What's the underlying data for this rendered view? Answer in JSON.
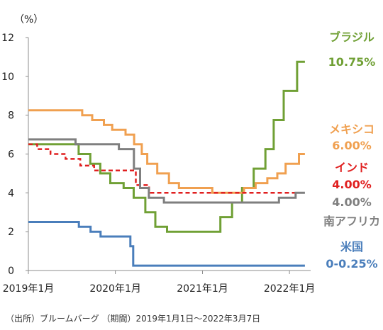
{
  "chart_data": {
    "type": "line",
    "unit_label": "（%）",
    "ylim": [
      0,
      12
    ],
    "y_ticks": [
      "0",
      "2",
      "4",
      "6",
      "8",
      "10",
      "12"
    ],
    "x_ticks": [
      "2019年1月",
      "2020年1月",
      "2021年1月",
      "2022年1月"
    ],
    "x_range": [
      "2019-01-01",
      "2022-03-07"
    ],
    "grid": "none",
    "source_note": "（出所）ブルームバーグ （期間）2019年1月1日～2022年3月7日",
    "series": [
      {
        "name": "ブラジル",
        "value_label": "10.75%",
        "color": "#70a035",
        "dash": false,
        "points": [
          [
            "2019-01-01",
            6.5
          ],
          [
            "2019-07-31",
            6.0
          ],
          [
            "2019-09-18",
            5.5
          ],
          [
            "2019-10-30",
            5.0
          ],
          [
            "2019-12-11",
            4.5
          ],
          [
            "2020-02-05",
            4.25
          ],
          [
            "2020-03-18",
            3.75
          ],
          [
            "2020-05-06",
            3.0
          ],
          [
            "2020-06-17",
            2.25
          ],
          [
            "2020-08-05",
            2.0
          ],
          [
            "2021-03-17",
            2.75
          ],
          [
            "2021-05-05",
            3.5
          ],
          [
            "2021-06-16",
            4.25
          ],
          [
            "2021-08-04",
            5.25
          ],
          [
            "2021-09-22",
            6.25
          ],
          [
            "2021-10-27",
            7.75
          ],
          [
            "2021-12-08",
            9.25
          ],
          [
            "2022-02-02",
            10.75
          ],
          [
            "2022-03-07",
            10.75
          ]
        ]
      },
      {
        "name": "メキシコ",
        "value_label": "6.00%",
        "color": "#f0a050",
        "dash": false,
        "points": [
          [
            "2019-01-01",
            8.25
          ],
          [
            "2019-08-15",
            8.0
          ],
          [
            "2019-09-26",
            7.75
          ],
          [
            "2019-11-14",
            7.5
          ],
          [
            "2019-12-19",
            7.25
          ],
          [
            "2020-02-13",
            7.0
          ],
          [
            "2020-03-20",
            6.5
          ],
          [
            "2020-04-21",
            6.0
          ],
          [
            "2020-05-14",
            5.5
          ],
          [
            "2020-06-25",
            5.0
          ],
          [
            "2020-08-13",
            4.5
          ],
          [
            "2020-09-24",
            4.25
          ],
          [
            "2021-02-11",
            4.0
          ],
          [
            "2021-06-24",
            4.25
          ],
          [
            "2021-08-12",
            4.5
          ],
          [
            "2021-09-30",
            4.75
          ],
          [
            "2021-11-11",
            5.0
          ],
          [
            "2021-12-16",
            5.5
          ],
          [
            "2022-02-10",
            6.0
          ],
          [
            "2022-03-07",
            6.0
          ]
        ]
      },
      {
        "name": "インド",
        "value_label": "4.00%",
        "color": "#e02020",
        "dash": true,
        "points": [
          [
            "2019-01-01",
            6.5
          ],
          [
            "2019-02-07",
            6.25
          ],
          [
            "2019-04-04",
            6.0
          ],
          [
            "2019-06-06",
            5.75
          ],
          [
            "2019-08-07",
            5.4
          ],
          [
            "2019-10-04",
            5.15
          ],
          [
            "2020-03-27",
            4.4
          ],
          [
            "2020-05-22",
            4.0
          ],
          [
            "2022-03-07",
            4.0
          ]
        ]
      },
      {
        "name": "南アフリカ",
        "value_label": "4.00%",
        "color": "#7f7f7f",
        "dash": false,
        "points": [
          [
            "2019-01-01",
            6.75
          ],
          [
            "2019-07-18",
            6.5
          ],
          [
            "2020-01-16",
            6.25
          ],
          [
            "2020-03-19",
            5.25
          ],
          [
            "2020-04-14",
            4.25
          ],
          [
            "2020-05-21",
            3.75
          ],
          [
            "2020-07-23",
            3.5
          ],
          [
            "2021-11-18",
            3.75
          ],
          [
            "2022-01-27",
            4.0
          ],
          [
            "2022-03-07",
            4.0
          ]
        ]
      },
      {
        "name": "米国",
        "value_label": "0-0.25%",
        "color": "#4a7ebb",
        "dash": false,
        "points": [
          [
            "2019-01-01",
            2.5
          ],
          [
            "2019-08-01",
            2.25
          ],
          [
            "2019-09-19",
            2.0
          ],
          [
            "2019-10-31",
            1.75
          ],
          [
            "2020-03-04",
            1.25
          ],
          [
            "2020-03-16",
            0.25
          ],
          [
            "2022-03-07",
            0.25
          ]
        ]
      }
    ]
  }
}
